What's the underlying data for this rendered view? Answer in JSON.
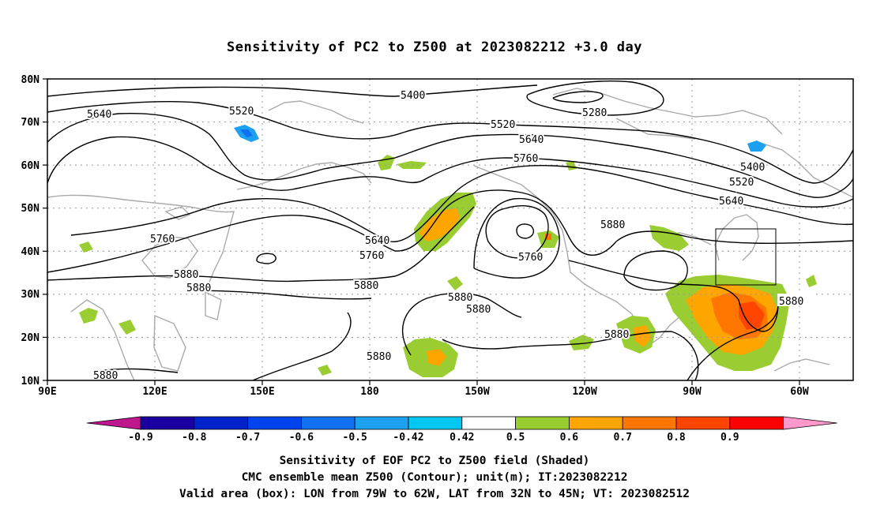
{
  "title": "Sensitivity of PC2 to Z500 at 2023082212 +3.0 day",
  "map": {
    "lon_ticks": [
      "90E",
      "120E",
      "150E",
      "180",
      "150W",
      "120W",
      "90W",
      "60W"
    ],
    "lat_ticks": [
      "80N",
      "70N",
      "60N",
      "50N",
      "40N",
      "30N",
      "20N",
      "10N"
    ],
    "contour_labels": [
      {
        "text": "5400"
      },
      {
        "text": "5280"
      },
      {
        "text": "5520"
      },
      {
        "text": "5640"
      },
      {
        "text": "5520"
      },
      {
        "text": "5640"
      },
      {
        "text": "5760"
      },
      {
        "text": "5400"
      },
      {
        "text": "5520"
      },
      {
        "text": "5640"
      },
      {
        "text": "5760"
      },
      {
        "text": "5640"
      },
      {
        "text": "5760"
      },
      {
        "text": "5760"
      },
      {
        "text": "5880"
      },
      {
        "text": "5880"
      },
      {
        "text": "5880"
      },
      {
        "text": "5880"
      },
      {
        "text": "5880"
      },
      {
        "text": "5880"
      },
      {
        "text": "5880"
      },
      {
        "text": "5880"
      },
      {
        "text": "5880"
      }
    ],
    "valid_box": {
      "lon_w": "79W",
      "lon_e": "62W",
      "lat_s": "32N",
      "lat_n": "45N"
    }
  },
  "colorbar": {
    "labels": [
      "-0.9",
      "-0.8",
      "-0.7",
      "-0.6",
      "-0.5",
      "-0.42",
      "0.42",
      "0.5",
      "0.6",
      "0.7",
      "0.8",
      "0.9"
    ],
    "colors": [
      "#c0168e",
      "#1a00a0",
      "#0022c8",
      "#0044ee",
      "#1070f0",
      "#1ea0f0",
      "#00c8f0",
      "#ffffff",
      "#9acd32",
      "#ffa500",
      "#ff7700",
      "#ff4500",
      "#ff0000",
      "#ff99cc"
    ]
  },
  "captions": [
    "Sensitivity of EOF PC2 to Z500 field (Shaded)",
    "CMC ensemble mean Z500 (Contour); unit(m); IT:2023082212",
    "Valid area (box): LON from 79W to 62W, LAT from 32N to 45N; VT: 2023082512"
  ]
}
